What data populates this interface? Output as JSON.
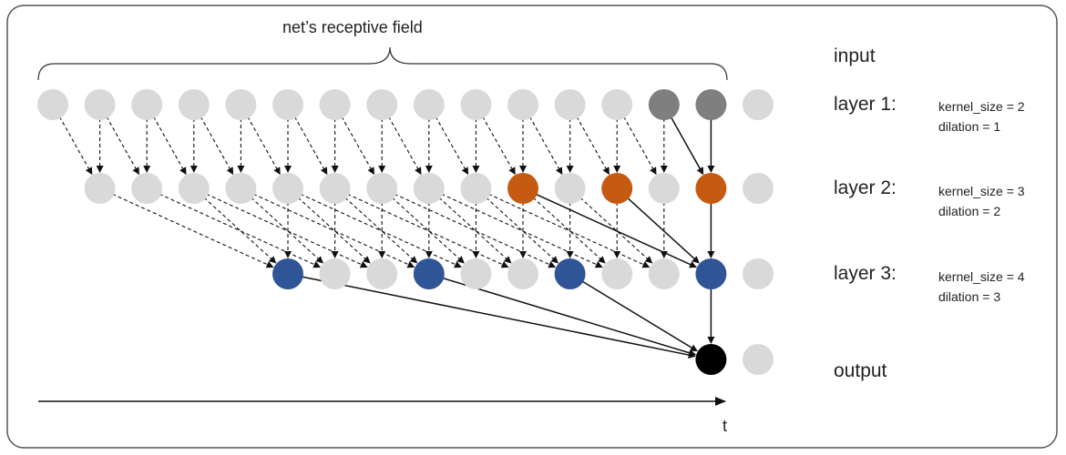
{
  "brace_label": "net’s receptive field",
  "axis_label": "t",
  "rows": {
    "input": {
      "label": "input"
    },
    "layer1": {
      "label": "layer 1:",
      "kernel": "kernel_size = 2",
      "dilation": "dilation = 1"
    },
    "layer2": {
      "label": "layer 2:",
      "kernel": "kernel_size = 3",
      "dilation": "dilation = 2"
    },
    "layer3": {
      "label": "layer 3:",
      "kernel": "kernel_size = 4",
      "dilation": "dilation = 3"
    },
    "output": {
      "label": "output"
    }
  },
  "colors": {
    "inactive": "#d9d9d9",
    "input_active": "#7f7f7f",
    "layer2_active": "#c55a11",
    "layer3_active": "#2f5597",
    "output": "#000000"
  }
}
